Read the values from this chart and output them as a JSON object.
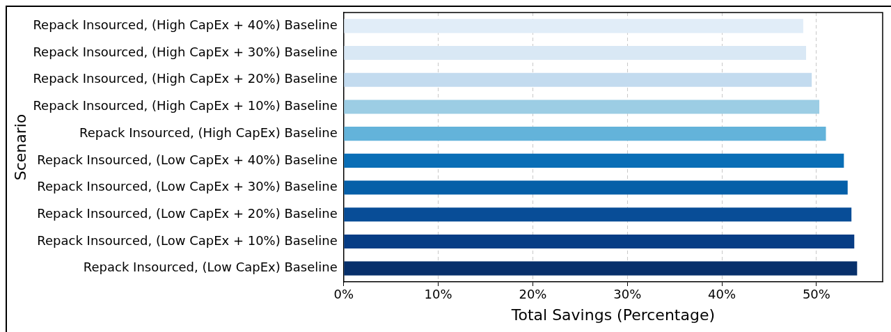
{
  "chart_data": {
    "type": "bar",
    "orientation": "horizontal",
    "xlabel": "Total Savings (Percentage)",
    "ylabel": "Scenario",
    "categories": [
      "Repack Insourced, (High CapEx + 40%) Baseline",
      "Repack Insourced, (High CapEx + 30%) Baseline",
      "Repack Insourced, (High CapEx + 20%) Baseline",
      "Repack Insourced, (High CapEx + 10%) Baseline",
      "Repack Insourced, (High CapEx) Baseline",
      "Repack Insourced, (Low CapEx + 40%) Baseline",
      "Repack Insourced, (Low CapEx + 30%) Baseline",
      "Repack Insourced, (Low CapEx + 20%) Baseline",
      "Repack Insourced, (Low CapEx + 10%) Baseline",
      "Repack Insourced, (Low CapEx) Baseline"
    ],
    "values": [
      48.6,
      48.9,
      49.5,
      50.3,
      51.0,
      52.9,
      53.3,
      53.7,
      54.0,
      54.3
    ],
    "colors": [
      "#e1edf8",
      "#d9e8f5",
      "#c3dbef",
      "#9ccde4",
      "#63b3da",
      "#0a6eb6",
      "#065fa8",
      "#084d97",
      "#073d85",
      "#08306b"
    ],
    "xlim": [
      0,
      57
    ],
    "xticks": [
      {
        "value": 0,
        "label": "0%"
      },
      {
        "value": 10,
        "label": "10%"
      },
      {
        "value": 20,
        "label": "20%"
      },
      {
        "value": 30,
        "label": "30%"
      },
      {
        "value": 40,
        "label": "40%"
      },
      {
        "value": 50,
        "label": "50%"
      }
    ],
    "grid": "x"
  }
}
